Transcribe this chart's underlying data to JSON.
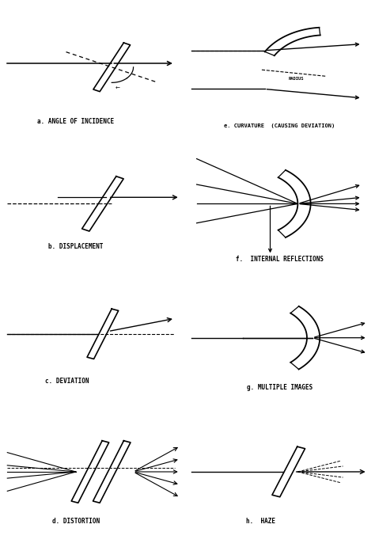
{
  "panel_labels": {
    "a": "a. ANGLE OF INCIDENCE",
    "b": "b. DISPLACEMENT",
    "c": "c. DEVIATION",
    "d": "d. DISTORTION",
    "e": "e. CURVATURE  (CAUSING DEVIATION)",
    "f": "f.  INTERNAL REFLECTIONS",
    "g": "g. MULTIPLE IMAGES",
    "h": "h.  HAZE"
  },
  "label_fontsize": 5.5
}
